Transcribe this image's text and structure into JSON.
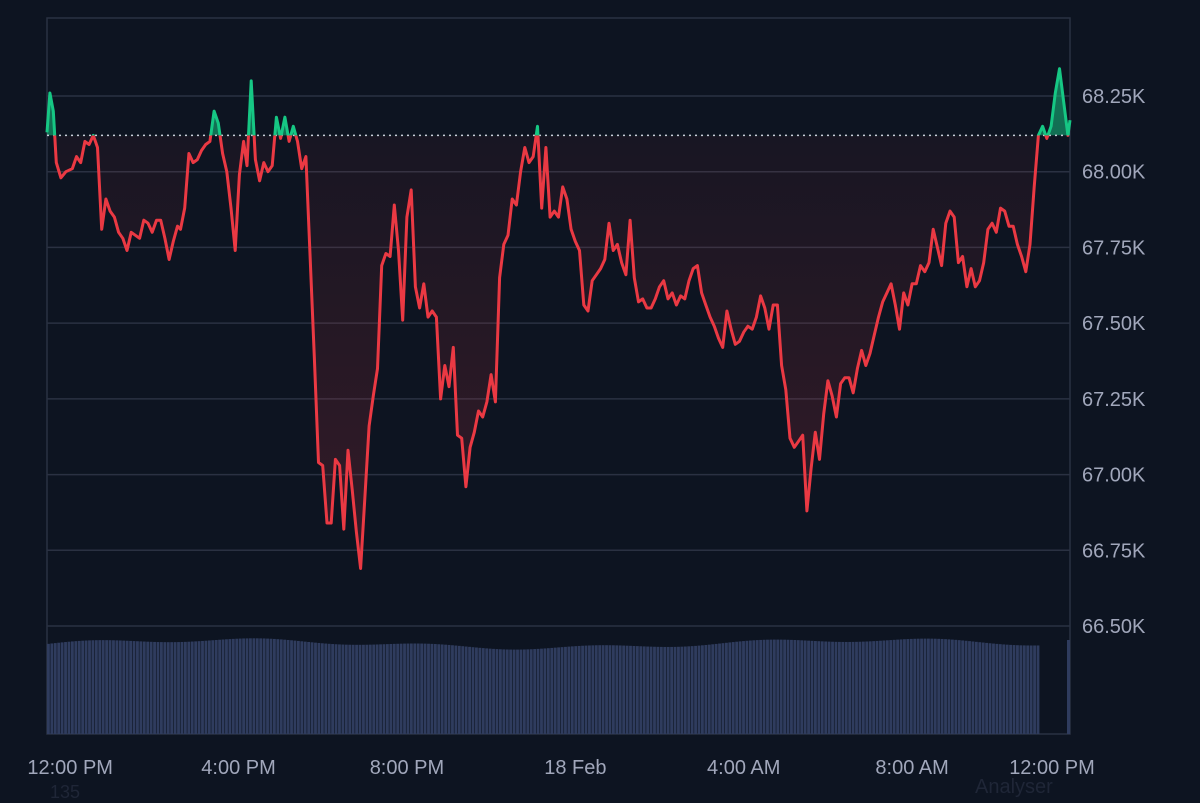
{
  "chart_data": {
    "type": "area",
    "title": "",
    "xlabel": "",
    "ylabel": "",
    "x_tick_labels": [
      "12:00 PM",
      "4:00 PM",
      "8:00 PM",
      "18 Feb",
      "4:00 AM",
      "8:00 AM",
      "12:00 PM"
    ],
    "y_tick_labels": [
      "68.25K",
      "68.00K",
      "67.75K",
      "67.50K",
      "67.25K",
      "67.00K",
      "66.75K",
      "66.50K"
    ],
    "y_tick_values": [
      68250,
      68000,
      67750,
      67500,
      67250,
      67000,
      66750,
      66500
    ],
    "ylim": [
      66500,
      68500
    ],
    "x_range_hours": [
      -0.55,
      23.75
    ],
    "baseline": 68120,
    "baseline_style": "dotted",
    "grid": true,
    "legend": "none",
    "colors": {
      "above": "#16c784",
      "below": "#ea3943",
      "volume": "#2f3c5e",
      "grid": "#2a3142",
      "background": "#0d1421"
    },
    "series": [
      {
        "points": [
          [
            -0.55,
            68130
          ],
          [
            -0.48,
            68260
          ],
          [
            -0.4,
            68200
          ],
          [
            -0.33,
            68030
          ],
          [
            -0.22,
            67980
          ],
          [
            -0.1,
            68000
          ],
          [
            0.05,
            68010
          ],
          [
            0.15,
            68050
          ],
          [
            0.25,
            68030
          ],
          [
            0.35,
            68100
          ],
          [
            0.45,
            68090
          ],
          [
            0.55,
            68120
          ],
          [
            0.65,
            68080
          ],
          [
            0.75,
            67810
          ],
          [
            0.85,
            67910
          ],
          [
            0.95,
            67870
          ],
          [
            1.05,
            67850
          ],
          [
            1.15,
            67800
          ],
          [
            1.25,
            67780
          ],
          [
            1.35,
            67740
          ],
          [
            1.45,
            67800
          ],
          [
            1.55,
            67790
          ],
          [
            1.65,
            67780
          ],
          [
            1.75,
            67840
          ],
          [
            1.85,
            67830
          ],
          [
            1.95,
            67800
          ],
          [
            2.05,
            67840
          ],
          [
            2.15,
            67840
          ],
          [
            2.25,
            67780
          ],
          [
            2.35,
            67710
          ],
          [
            2.45,
            67770
          ],
          [
            2.55,
            67820
          ],
          [
            2.62,
            67810
          ],
          [
            2.72,
            67880
          ],
          [
            2.82,
            68060
          ],
          [
            2.92,
            68030
          ],
          [
            3.02,
            68040
          ],
          [
            3.12,
            68070
          ],
          [
            3.22,
            68090
          ],
          [
            3.32,
            68100
          ],
          [
            3.42,
            68200
          ],
          [
            3.52,
            68160
          ],
          [
            3.62,
            68060
          ],
          [
            3.72,
            68000
          ],
          [
            3.82,
            67880
          ],
          [
            3.92,
            67740
          ],
          [
            4.02,
            67990
          ],
          [
            4.12,
            68100
          ],
          [
            4.2,
            68020
          ],
          [
            4.3,
            68300
          ],
          [
            4.4,
            68040
          ],
          [
            4.5,
            67970
          ],
          [
            4.6,
            68030
          ],
          [
            4.7,
            68000
          ],
          [
            4.8,
            68020
          ],
          [
            4.9,
            68180
          ],
          [
            5.0,
            68110
          ],
          [
            5.1,
            68180
          ],
          [
            5.2,
            68100
          ],
          [
            5.3,
            68150
          ],
          [
            5.4,
            68100
          ],
          [
            5.5,
            68010
          ],
          [
            5.6,
            68050
          ],
          [
            5.7,
            67720
          ],
          [
            5.8,
            67390
          ],
          [
            5.9,
            67040
          ],
          [
            6.0,
            67030
          ],
          [
            6.1,
            66840
          ],
          [
            6.2,
            66840
          ],
          [
            6.3,
            67050
          ],
          [
            6.4,
            67030
          ],
          [
            6.5,
            66820
          ],
          [
            6.6,
            67080
          ],
          [
            6.7,
            66950
          ],
          [
            6.8,
            66810
          ],
          [
            6.9,
            66690
          ],
          [
            7.0,
            66920
          ],
          [
            7.1,
            67160
          ],
          [
            7.2,
            67260
          ],
          [
            7.3,
            67350
          ],
          [
            7.4,
            67690
          ],
          [
            7.5,
            67730
          ],
          [
            7.6,
            67720
          ],
          [
            7.7,
            67890
          ],
          [
            7.8,
            67740
          ],
          [
            7.9,
            67510
          ],
          [
            8.0,
            67850
          ],
          [
            8.1,
            67940
          ],
          [
            8.2,
            67620
          ],
          [
            8.3,
            67550
          ],
          [
            8.4,
            67630
          ],
          [
            8.5,
            67520
          ],
          [
            8.6,
            67540
          ],
          [
            8.7,
            67520
          ],
          [
            8.8,
            67250
          ],
          [
            8.9,
            67360
          ],
          [
            9.0,
            67290
          ],
          [
            9.1,
            67420
          ],
          [
            9.2,
            67130
          ],
          [
            9.3,
            67120
          ],
          [
            9.4,
            66960
          ],
          [
            9.5,
            67090
          ],
          [
            9.6,
            67140
          ],
          [
            9.7,
            67210
          ],
          [
            9.8,
            67190
          ],
          [
            9.9,
            67240
          ],
          [
            10.0,
            67330
          ],
          [
            10.1,
            67240
          ],
          [
            10.2,
            67650
          ],
          [
            10.3,
            67760
          ],
          [
            10.4,
            67790
          ],
          [
            10.5,
            67910
          ],
          [
            10.6,
            67890
          ],
          [
            10.7,
            68000
          ],
          [
            10.8,
            68080
          ],
          [
            10.9,
            68030
          ],
          [
            11.0,
            68050
          ],
          [
            11.1,
            68150
          ],
          [
            11.2,
            67880
          ],
          [
            11.3,
            68080
          ],
          [
            11.4,
            67850
          ],
          [
            11.5,
            67870
          ],
          [
            11.6,
            67850
          ],
          [
            11.7,
            67950
          ],
          [
            11.8,
            67910
          ],
          [
            11.9,
            67810
          ],
          [
            12.0,
            67770
          ],
          [
            12.1,
            67740
          ],
          [
            12.2,
            67560
          ],
          [
            12.3,
            67540
          ],
          [
            12.4,
            67640
          ],
          [
            12.5,
            67660
          ],
          [
            12.6,
            67680
          ],
          [
            12.7,
            67710
          ],
          [
            12.8,
            67830
          ],
          [
            12.9,
            67740
          ],
          [
            13.0,
            67760
          ],
          [
            13.1,
            67700
          ],
          [
            13.2,
            67660
          ],
          [
            13.3,
            67840
          ],
          [
            13.4,
            67650
          ],
          [
            13.5,
            67570
          ],
          [
            13.6,
            67580
          ],
          [
            13.7,
            67550
          ],
          [
            13.8,
            67550
          ],
          [
            13.9,
            67580
          ],
          [
            14.0,
            67620
          ],
          [
            14.1,
            67640
          ],
          [
            14.2,
            67580
          ],
          [
            14.3,
            67600
          ],
          [
            14.4,
            67560
          ],
          [
            14.5,
            67590
          ],
          [
            14.6,
            67580
          ],
          [
            14.7,
            67640
          ],
          [
            14.8,
            67680
          ],
          [
            14.9,
            67690
          ],
          [
            15.0,
            67600
          ],
          [
            15.1,
            67560
          ],
          [
            15.2,
            67520
          ],
          [
            15.3,
            67490
          ],
          [
            15.4,
            67450
          ],
          [
            15.5,
            67420
          ],
          [
            15.6,
            67540
          ],
          [
            15.7,
            67480
          ],
          [
            15.8,
            67430
          ],
          [
            15.9,
            67440
          ],
          [
            16.0,
            67470
          ],
          [
            16.1,
            67490
          ],
          [
            16.2,
            67480
          ],
          [
            16.3,
            67520
          ],
          [
            16.4,
            67590
          ],
          [
            16.5,
            67550
          ],
          [
            16.6,
            67480
          ],
          [
            16.7,
            67560
          ],
          [
            16.8,
            67560
          ],
          [
            16.9,
            67360
          ],
          [
            17.0,
            67280
          ],
          [
            17.1,
            67120
          ],
          [
            17.2,
            67090
          ],
          [
            17.3,
            67110
          ],
          [
            17.4,
            67130
          ],
          [
            17.5,
            66880
          ],
          [
            17.6,
            67020
          ],
          [
            17.7,
            67140
          ],
          [
            17.8,
            67050
          ],
          [
            17.9,
            67200
          ],
          [
            18.0,
            67310
          ],
          [
            18.1,
            67260
          ],
          [
            18.2,
            67190
          ],
          [
            18.3,
            67300
          ],
          [
            18.4,
            67320
          ],
          [
            18.5,
            67320
          ],
          [
            18.6,
            67270
          ],
          [
            18.7,
            67350
          ],
          [
            18.8,
            67410
          ],
          [
            18.9,
            67360
          ],
          [
            19.0,
            67400
          ],
          [
            19.1,
            67460
          ],
          [
            19.2,
            67520
          ],
          [
            19.3,
            67570
          ],
          [
            19.4,
            67600
          ],
          [
            19.5,
            67630
          ],
          [
            19.6,
            67560
          ],
          [
            19.7,
            67480
          ],
          [
            19.8,
            67600
          ],
          [
            19.9,
            67560
          ],
          [
            20.0,
            67630
          ],
          [
            20.1,
            67630
          ],
          [
            20.2,
            67690
          ],
          [
            20.3,
            67670
          ],
          [
            20.4,
            67700
          ],
          [
            20.5,
            67810
          ],
          [
            20.6,
            67750
          ],
          [
            20.7,
            67690
          ],
          [
            20.8,
            67830
          ],
          [
            20.9,
            67870
          ],
          [
            21.0,
            67850
          ],
          [
            21.1,
            67700
          ],
          [
            21.2,
            67720
          ],
          [
            21.3,
            67620
          ],
          [
            21.4,
            67680
          ],
          [
            21.5,
            67620
          ],
          [
            21.6,
            67640
          ],
          [
            21.7,
            67700
          ],
          [
            21.8,
            67810
          ],
          [
            21.9,
            67830
          ],
          [
            22.0,
            67800
          ],
          [
            22.1,
            67880
          ],
          [
            22.2,
            67870
          ],
          [
            22.3,
            67820
          ],
          [
            22.4,
            67820
          ],
          [
            22.5,
            67760
          ],
          [
            22.6,
            67720
          ],
          [
            22.7,
            67670
          ],
          [
            22.8,
            67760
          ],
          [
            22.9,
            67950
          ],
          [
            23.0,
            68120
          ],
          [
            23.1,
            68150
          ],
          [
            23.2,
            68110
          ],
          [
            23.3,
            68150
          ],
          [
            23.4,
            68260
          ],
          [
            23.5,
            68340
          ],
          [
            23.6,
            68230
          ],
          [
            23.7,
            68120
          ],
          [
            23.75,
            68170
          ]
        ]
      }
    ],
    "volume_bars": {
      "count": 290,
      "level": 0.92
    }
  },
  "footer": {
    "left_label": "135",
    "right_label": "Analyser"
  }
}
